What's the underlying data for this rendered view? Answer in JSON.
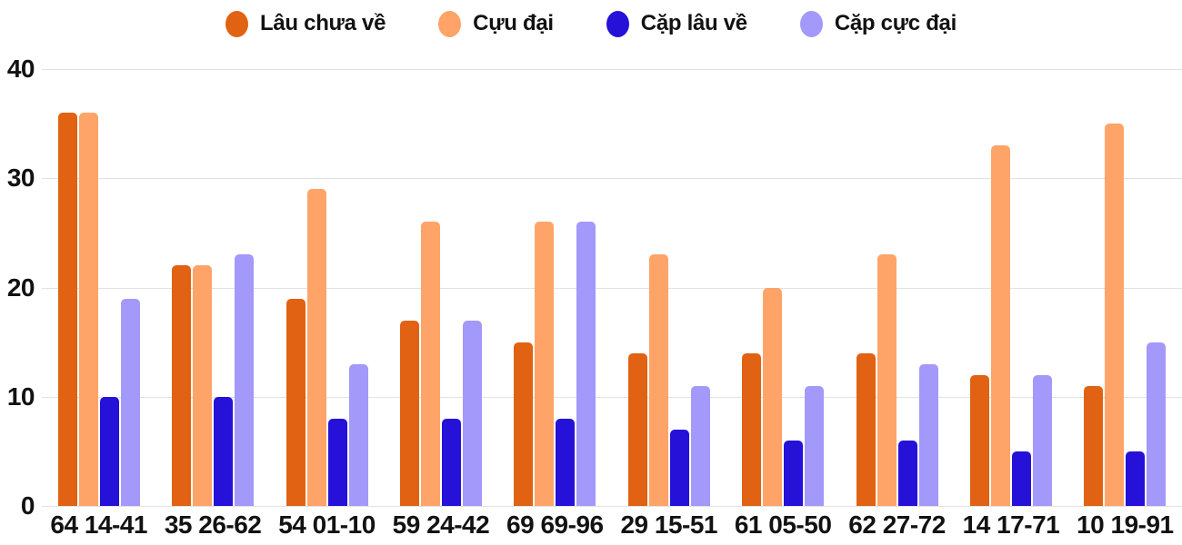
{
  "chart_data": {
    "type": "bar",
    "title": "",
    "xlabel": "",
    "ylabel": "",
    "ylim": [
      0,
      40
    ],
    "y_ticks": [
      0,
      10,
      20,
      30,
      40
    ],
    "grid": true,
    "legend_position": "top",
    "categories": [
      "64 14-41",
      "35 26-62",
      "54 01-10",
      "59 24-42",
      "69 69-96",
      "29 15-51",
      "61 05-50",
      "62 27-72",
      "14 17-71",
      "10 19-91"
    ],
    "series": [
      {
        "name": "Lâu chưa về",
        "color": "#e06212",
        "values": [
          36,
          22,
          19,
          17,
          15,
          14,
          14,
          14,
          12,
          11
        ]
      },
      {
        "name": "Cựu đại",
        "color": "#ffa468",
        "values": [
          36,
          22,
          29,
          26,
          26,
          23,
          20,
          23,
          33,
          35
        ]
      },
      {
        "name": "Cặp lâu về",
        "color": "#2511d8",
        "values": [
          10,
          10,
          8,
          8,
          8,
          7,
          6,
          6,
          5,
          5
        ]
      },
      {
        "name": "Cặp cực đại",
        "color": "#a399fa",
        "values": [
          19,
          23,
          13,
          17,
          26,
          11,
          11,
          13,
          12,
          15
        ]
      }
    ]
  },
  "colors": {
    "background": "#ffffff",
    "text": "#121212",
    "gridline": "#e2e2e2"
  }
}
